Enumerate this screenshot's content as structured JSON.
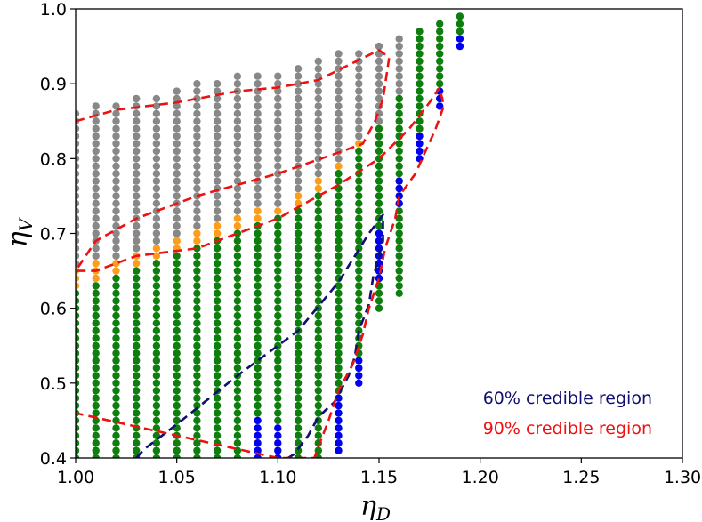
{
  "chart_data": {
    "type": "scatter",
    "title": "",
    "xlabel": "η_D",
    "ylabel": "η_V",
    "xlim": [
      1.0,
      1.3
    ],
    "ylim": [
      0.4,
      1.0
    ],
    "x_ticks": [
      "1.00",
      "1.05",
      "1.10",
      "1.15",
      "1.20",
      "1.25",
      "1.30"
    ],
    "y_ticks": [
      "0.4",
      "0.5",
      "0.6",
      "0.7",
      "0.8",
      "0.9",
      "1.0"
    ],
    "grid": false,
    "point_step_y": 0.01,
    "columns": [
      {
        "x": 1.0,
        "green": [
          0.4,
          0.62
        ],
        "orange": [
          0.63,
          0.65
        ],
        "gray": [
          0.66,
          0.86
        ]
      },
      {
        "x": 1.01,
        "green": [
          0.4,
          0.63
        ],
        "orange": [
          0.64,
          0.66
        ],
        "gray": [
          0.67,
          0.87
        ]
      },
      {
        "x": 1.02,
        "green": [
          0.4,
          0.64
        ],
        "orange": [
          0.65,
          0.66
        ],
        "gray": [
          0.67,
          0.87
        ]
      },
      {
        "x": 1.03,
        "green": [
          0.4,
          0.65
        ],
        "orange": [
          0.66,
          0.67
        ],
        "gray": [
          0.68,
          0.88
        ]
      },
      {
        "x": 1.04,
        "green": [
          0.4,
          0.66
        ],
        "orange": [
          0.67,
          0.68
        ],
        "gray": [
          0.69,
          0.88
        ]
      },
      {
        "x": 1.05,
        "green": [
          0.4,
          0.67
        ],
        "orange": [
          0.68,
          0.69
        ],
        "gray": [
          0.7,
          0.89
        ]
      },
      {
        "x": 1.06,
        "green": [
          0.4,
          0.68
        ],
        "orange": [
          0.69,
          0.7
        ],
        "gray": [
          0.71,
          0.9
        ]
      },
      {
        "x": 1.07,
        "green": [
          0.4,
          0.69
        ],
        "orange": [
          0.7,
          0.71
        ],
        "gray": [
          0.72,
          0.9
        ]
      },
      {
        "x": 1.08,
        "green": [
          0.4,
          0.7
        ],
        "orange": [
          0.71,
          0.72
        ],
        "gray": [
          0.73,
          0.91
        ]
      },
      {
        "x": 1.09,
        "blue": [
          0.4,
          0.45
        ],
        "green": [
          0.46,
          0.71
        ],
        "orange": [
          0.72,
          0.73
        ],
        "gray": [
          0.74,
          0.91
        ]
      },
      {
        "x": 1.1,
        "blue": [
          0.4,
          0.44
        ],
        "green": [
          0.45,
          0.72
        ],
        "orange": [
          0.73,
          0.73
        ],
        "gray": [
          0.74,
          0.91
        ]
      },
      {
        "x": 1.11,
        "green": [
          0.4,
          0.73
        ],
        "orange": [
          0.74,
          0.75
        ],
        "gray": [
          0.76,
          0.92
        ]
      },
      {
        "x": 1.12,
        "green": [
          0.4,
          0.75
        ],
        "orange": [
          0.76,
          0.77
        ],
        "gray": [
          0.78,
          0.93
        ]
      },
      {
        "x": 1.13,
        "blue": [
          0.41,
          0.48
        ],
        "green": [
          0.49,
          0.78
        ],
        "orange": [
          0.79,
          0.79
        ],
        "gray": [
          0.8,
          0.94
        ]
      },
      {
        "x": 1.14,
        "blue": [
          0.5,
          0.53
        ],
        "green": [
          0.54,
          0.81
        ],
        "orange": [
          0.82,
          0.82
        ],
        "gray": [
          0.83,
          0.94
        ]
      },
      {
        "x": 1.15,
        "blue": [
          0.64,
          0.7
        ],
        "green": [
          0.6,
          0.84
        ],
        "gray": [
          0.85,
          0.95
        ]
      },
      {
        "x": 1.16,
        "blue": [
          0.74,
          0.77
        ],
        "green": [
          0.62,
          0.88
        ],
        "gray": [
          0.89,
          0.96
        ]
      },
      {
        "x": 1.17,
        "blue": [
          0.8,
          0.83
        ],
        "green": [
          0.84,
          0.97
        ]
      },
      {
        "x": 1.18,
        "blue": [
          0.87,
          0.89
        ],
        "green": [
          0.9,
          0.98
        ]
      },
      {
        "x": 1.19,
        "blue": [
          0.95,
          0.96
        ],
        "green": [
          0.97,
          0.99
        ]
      }
    ],
    "contours": [
      {
        "name": "60% credible region",
        "color": "#101070",
        "points": [
          [
            1.03,
            0.4
          ],
          [
            1.034,
            0.412
          ],
          [
            1.05,
            0.445
          ],
          [
            1.08,
            0.51
          ],
          [
            1.11,
            0.57
          ],
          [
            1.13,
            0.635
          ],
          [
            1.145,
            0.7
          ],
          [
            1.152,
            0.725
          ],
          [
            1.152,
            0.69
          ],
          [
            1.147,
            0.64
          ],
          [
            1.145,
            0.605
          ],
          [
            1.14,
            0.57
          ],
          [
            1.138,
            0.535
          ],
          [
            1.135,
            0.51
          ],
          [
            1.128,
            0.475
          ],
          [
            1.12,
            0.455
          ],
          [
            1.115,
            0.43
          ],
          [
            1.108,
            0.405
          ],
          [
            1.105,
            0.4
          ]
        ]
      },
      {
        "name": "90% credible region",
        "color": "#ee1111",
        "points": [
          [
            1.0,
            0.85
          ],
          [
            1.02,
            0.865
          ],
          [
            1.05,
            0.875
          ],
          [
            1.08,
            0.89
          ],
          [
            1.1,
            0.895
          ],
          [
            1.12,
            0.905
          ],
          [
            1.135,
            0.925
          ],
          [
            1.15,
            0.945
          ],
          [
            1.155,
            0.935
          ],
          [
            1.152,
            0.88
          ],
          [
            1.148,
            0.85
          ],
          [
            1.142,
            0.82
          ],
          [
            1.132,
            0.81
          ],
          [
            1.1,
            0.78
          ],
          [
            1.06,
            0.75
          ],
          [
            1.03,
            0.72
          ],
          [
            1.01,
            0.69
          ],
          [
            1.0,
            0.65
          ],
          [
            1.0,
            0.65
          ],
          [
            1.01,
            0.65
          ],
          [
            1.03,
            0.67
          ],
          [
            1.06,
            0.68
          ],
          [
            1.1,
            0.72
          ],
          [
            1.13,
            0.765
          ],
          [
            1.15,
            0.8
          ],
          [
            1.165,
            0.84
          ],
          [
            1.175,
            0.875
          ],
          [
            1.18,
            0.895
          ],
          [
            1.182,
            0.87
          ],
          [
            1.178,
            0.84
          ],
          [
            1.173,
            0.81
          ],
          [
            1.168,
            0.78
          ],
          [
            1.16,
            0.75
          ],
          [
            1.158,
            0.72
          ],
          [
            1.153,
            0.68
          ],
          [
            1.15,
            0.64
          ],
          [
            1.145,
            0.6
          ],
          [
            1.142,
            0.565
          ],
          [
            1.137,
            0.525
          ],
          [
            1.13,
            0.49
          ],
          [
            1.125,
            0.45
          ],
          [
            1.12,
            0.415
          ],
          [
            1.118,
            0.4
          ],
          [
            1.1,
            0.4
          ],
          [
            1.05,
            0.43
          ],
          [
            1.0,
            0.46
          ]
        ]
      }
    ],
    "annotations": [
      "60% credible region",
      "90% credible region"
    ],
    "legend_placement": "bottom-right",
    "colors": {
      "gray": "#888888",
      "orange": "#ff9d1a",
      "green": "#0e7f0e",
      "blue": "#0000ee"
    }
  }
}
